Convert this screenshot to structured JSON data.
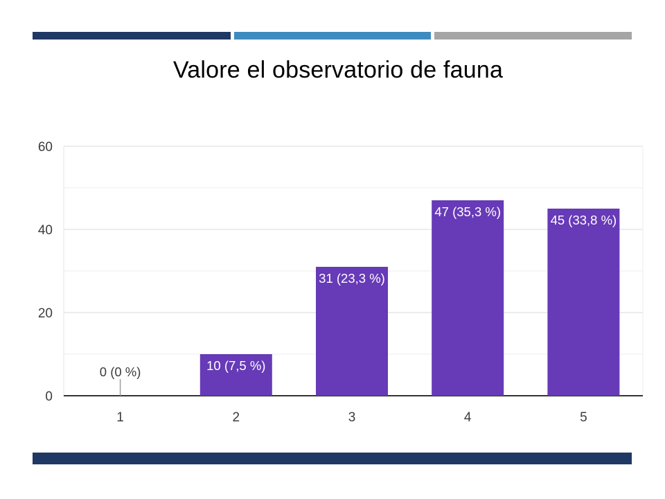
{
  "slide": {
    "title": "Valore el observatorio de fauna",
    "colors": {
      "accent_dark": "#1f3864",
      "accent_mid": "#3e8cbf",
      "accent_gray": "#a5a5a5"
    }
  },
  "chart_data": {
    "type": "bar",
    "categories": [
      "1",
      "2",
      "3",
      "4",
      "5"
    ],
    "values": [
      0,
      10,
      31,
      47,
      45
    ],
    "data_labels": [
      "0 (0 %)",
      "10 (7,5 %)",
      "31 (23,3 %)",
      "47 (35,3 %)",
      "45 (33,8 %)"
    ],
    "ylim": [
      0,
      60
    ],
    "y_ticks": [
      0,
      20,
      40,
      60
    ],
    "grid": true,
    "bar_color": "#673ab7",
    "title": "",
    "xlabel": "",
    "ylabel": ""
  }
}
